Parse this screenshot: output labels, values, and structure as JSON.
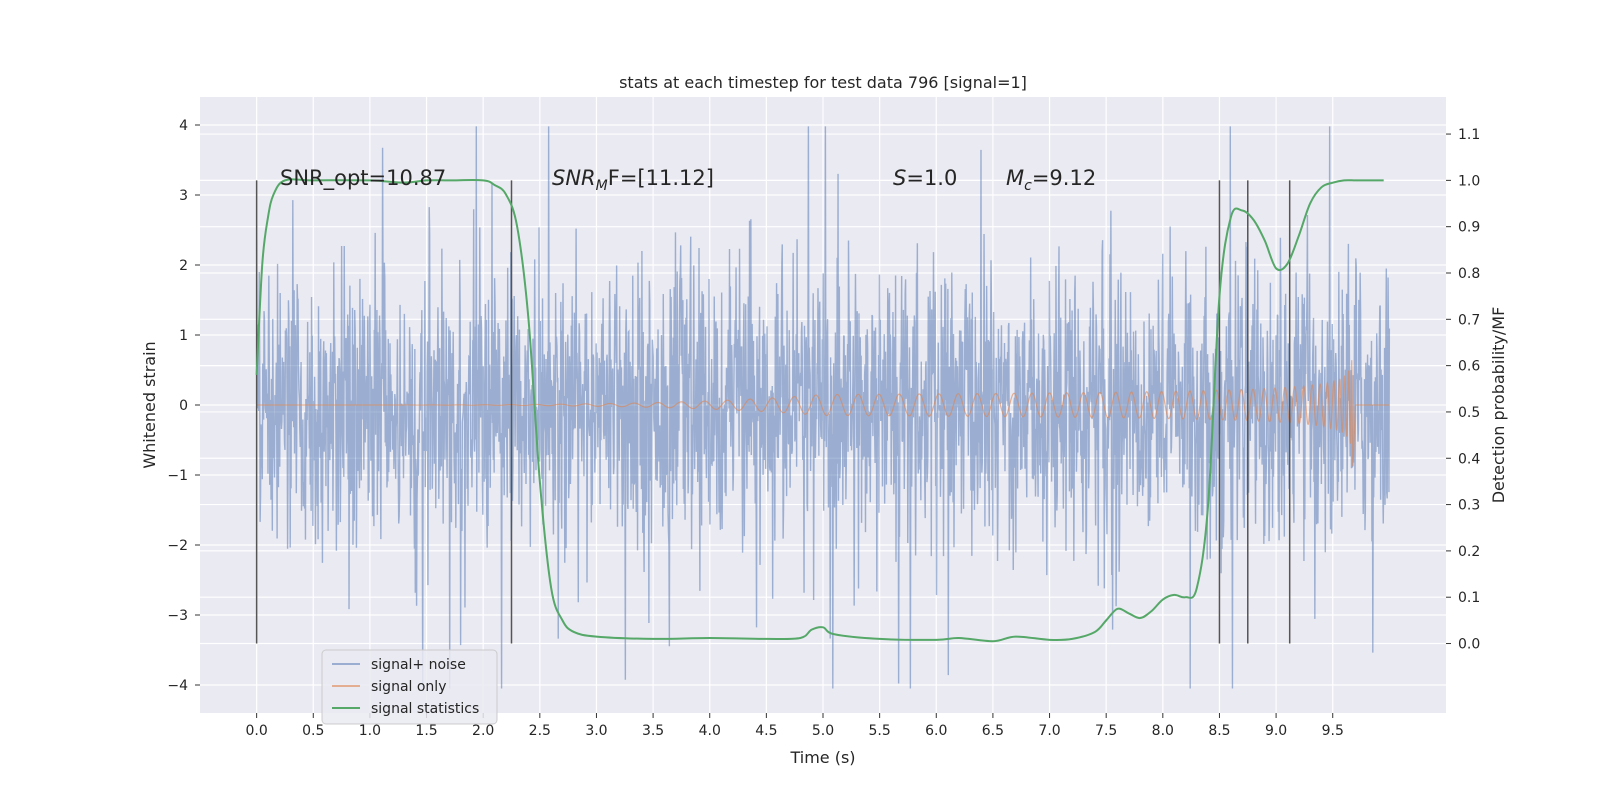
{
  "chart_data": {
    "type": "line",
    "title": "stats at each timestep for test data 796 [signal=1]",
    "xlabel": "Time (s)",
    "ylabel": "Whitened strain",
    "y2label": "Detection probability/MF",
    "xlim": [
      -0.5,
      10.5
    ],
    "ylim": [
      -4.4,
      4.4
    ],
    "y2lim": [
      -0.15,
      1.18
    ],
    "xticks": [
      "0.0",
      "0.5",
      "1.0",
      "1.5",
      "2.0",
      "2.5",
      "3.0",
      "3.5",
      "4.0",
      "4.5",
      "5.0",
      "5.5",
      "6.0",
      "6.5",
      "7.0",
      "7.5",
      "8.0",
      "8.5",
      "9.0",
      "9.5"
    ],
    "yticks": [
      "4",
      "3",
      "2",
      "1",
      "0",
      "−1",
      "−2",
      "−3",
      "−4"
    ],
    "y2ticks": [
      "1.1",
      "1.0",
      "0.9",
      "0.8",
      "0.7",
      "0.6",
      "0.5",
      "0.4",
      "0.3",
      "0.2",
      "0.1",
      "0.0"
    ],
    "grid": true,
    "legend_position": "lower-left",
    "series": [
      {
        "name": "signal+ noise",
        "color": "#4c72b0",
        "kind": "noisy-strain",
        "x_range": [
          0.0,
          10.0
        ],
        "typical_amplitude": 1.2,
        "extreme_range": [
          -4.05,
          3.98
        ]
      },
      {
        "name": "signal only",
        "color": "#dd8452",
        "kind": "chirp",
        "x_range": [
          0.0,
          9.68
        ],
        "peak_amplitude": 1.65
      },
      {
        "name": "signal statistics",
        "color": "#55a868",
        "axis": "right",
        "x": [
          0.0,
          0.05,
          0.1,
          0.15,
          0.25,
          0.5,
          1.0,
          1.3,
          1.5,
          1.7,
          2.0,
          2.1,
          2.2,
          2.3,
          2.4,
          2.5,
          2.6,
          2.7,
          2.8,
          3.0,
          3.5,
          4.0,
          4.5,
          4.8,
          4.9,
          5.0,
          5.1,
          5.5,
          6.0,
          6.2,
          6.5,
          6.7,
          7.0,
          7.2,
          7.4,
          7.5,
          7.6,
          7.7,
          7.8,
          7.9,
          8.0,
          8.1,
          8.2,
          8.3,
          8.4,
          8.5,
          8.6,
          8.7,
          8.8,
          8.9,
          9.0,
          9.1,
          9.2,
          9.3,
          9.4,
          9.5,
          9.6,
          9.7,
          9.8,
          9.9,
          9.95
        ],
        "values": [
          0.58,
          0.82,
          0.92,
          0.97,
          1.0,
          1.0,
          1.0,
          0.995,
          1.0,
          1.0,
          1.0,
          0.99,
          0.97,
          0.9,
          0.7,
          0.35,
          0.12,
          0.05,
          0.025,
          0.015,
          0.01,
          0.012,
          0.01,
          0.012,
          0.03,
          0.035,
          0.02,
          0.01,
          0.008,
          0.012,
          0.005,
          0.015,
          0.008,
          0.01,
          0.025,
          0.05,
          0.075,
          0.065,
          0.055,
          0.07,
          0.095,
          0.105,
          0.1,
          0.12,
          0.3,
          0.75,
          0.92,
          0.935,
          0.915,
          0.87,
          0.81,
          0.82,
          0.88,
          0.95,
          0.985,
          0.995,
          1.0,
          1.0,
          1.0,
          1.0,
          1.0
        ]
      }
    ],
    "vlines": [
      0.0,
      2.25,
      8.5,
      8.75,
      9.12
    ],
    "annotations": {
      "snr_opt": "SNR_opt=10.87",
      "snr_mf_main": "SNR",
      "snr_mf_sub": "M",
      "snr_mf_rest": "F=[11.12]",
      "s_main": "S",
      "s_rest": "=1.0",
      "mc_main": "M",
      "mc_sub": "c",
      "mc_rest": "=9.12"
    }
  },
  "colors": {
    "plot_bg": "#eaeaf2",
    "grid": "#ffffff",
    "vline": "#555555"
  }
}
